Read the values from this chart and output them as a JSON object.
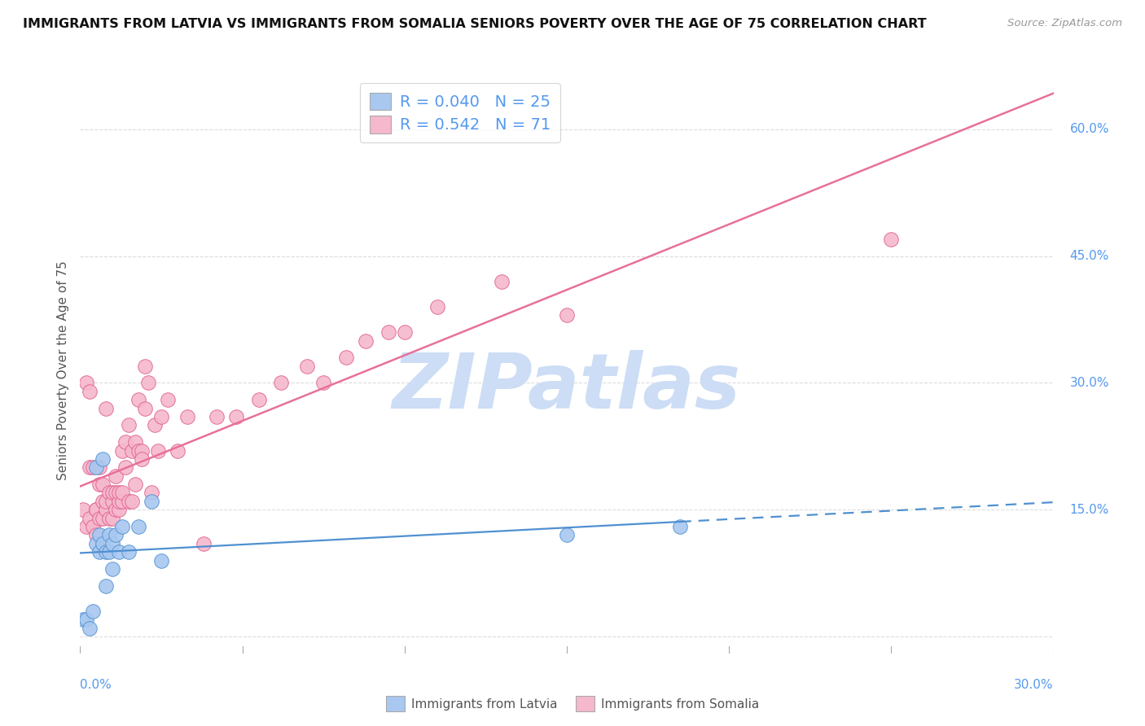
{
  "title": "IMMIGRANTS FROM LATVIA VS IMMIGRANTS FROM SOMALIA SENIORS POVERTY OVER THE AGE OF 75 CORRELATION CHART",
  "source": "Source: ZipAtlas.com",
  "ylabel": "Seniors Poverty Over the Age of 75",
  "xlim": [
    0.0,
    0.3
  ],
  "ylim": [
    -0.02,
    0.65
  ],
  "ytick_vals": [
    0.0,
    0.15,
    0.3,
    0.45,
    0.6
  ],
  "ytick_labels": [
    "",
    "15.0%",
    "30.0%",
    "45.0%",
    "60.0%"
  ],
  "xtick_vals": [
    0.0,
    0.05,
    0.1,
    0.15,
    0.2,
    0.25,
    0.3
  ],
  "legend_latvia_R": "0.040",
  "legend_latvia_N": "25",
  "legend_somalia_R": "0.542",
  "legend_somalia_N": "71",
  "latvia_fill": "#a8c8f0",
  "latvia_edge": "#5090d0",
  "somalia_fill": "#f5b8cc",
  "somalia_edge": "#e06090",
  "latvia_line_color": "#5090d0",
  "somalia_line_color": "#e8709a",
  "watermark": "ZIPatlas",
  "watermark_color": "#ccddf5",
  "axis_label_color": "#5599ee",
  "grid_color": "#dddddd",
  "right_label_color": "#5599ee",
  "latvia_x": [
    0.001,
    0.002,
    0.003,
    0.004,
    0.005,
    0.005,
    0.006,
    0.006,
    0.007,
    0.007,
    0.008,
    0.008,
    0.009,
    0.009,
    0.01,
    0.01,
    0.011,
    0.012,
    0.013,
    0.015,
    0.018,
    0.022,
    0.025,
    0.15,
    0.185
  ],
  "latvia_y": [
    0.02,
    0.02,
    0.01,
    0.03,
    0.11,
    0.2,
    0.1,
    0.12,
    0.21,
    0.11,
    0.1,
    0.06,
    0.12,
    0.1,
    0.11,
    0.08,
    0.12,
    0.1,
    0.13,
    0.1,
    0.13,
    0.16,
    0.09,
    0.12,
    0.13
  ],
  "somalia_x": [
    0.001,
    0.002,
    0.002,
    0.003,
    0.003,
    0.003,
    0.004,
    0.004,
    0.005,
    0.005,
    0.005,
    0.006,
    0.006,
    0.006,
    0.007,
    0.007,
    0.007,
    0.008,
    0.008,
    0.008,
    0.009,
    0.009,
    0.01,
    0.01,
    0.01,
    0.011,
    0.011,
    0.011,
    0.012,
    0.012,
    0.012,
    0.013,
    0.013,
    0.013,
    0.014,
    0.014,
    0.015,
    0.015,
    0.016,
    0.016,
    0.017,
    0.017,
    0.018,
    0.018,
    0.019,
    0.019,
    0.02,
    0.02,
    0.021,
    0.022,
    0.023,
    0.024,
    0.025,
    0.027,
    0.03,
    0.033,
    0.038,
    0.042,
    0.048,
    0.055,
    0.062,
    0.07,
    0.075,
    0.082,
    0.088,
    0.095,
    0.1,
    0.11,
    0.13,
    0.15,
    0.25
  ],
  "somalia_y": [
    0.15,
    0.13,
    0.3,
    0.14,
    0.2,
    0.29,
    0.13,
    0.2,
    0.15,
    0.15,
    0.12,
    0.18,
    0.14,
    0.2,
    0.16,
    0.18,
    0.14,
    0.15,
    0.16,
    0.27,
    0.14,
    0.17,
    0.14,
    0.16,
    0.17,
    0.15,
    0.17,
    0.19,
    0.15,
    0.16,
    0.17,
    0.16,
    0.17,
    0.22,
    0.2,
    0.23,
    0.16,
    0.25,
    0.22,
    0.16,
    0.23,
    0.18,
    0.22,
    0.28,
    0.22,
    0.21,
    0.27,
    0.32,
    0.3,
    0.17,
    0.25,
    0.22,
    0.26,
    0.28,
    0.22,
    0.26,
    0.11,
    0.26,
    0.26,
    0.28,
    0.3,
    0.32,
    0.3,
    0.33,
    0.35,
    0.36,
    0.36,
    0.39,
    0.42,
    0.38,
    0.47
  ]
}
